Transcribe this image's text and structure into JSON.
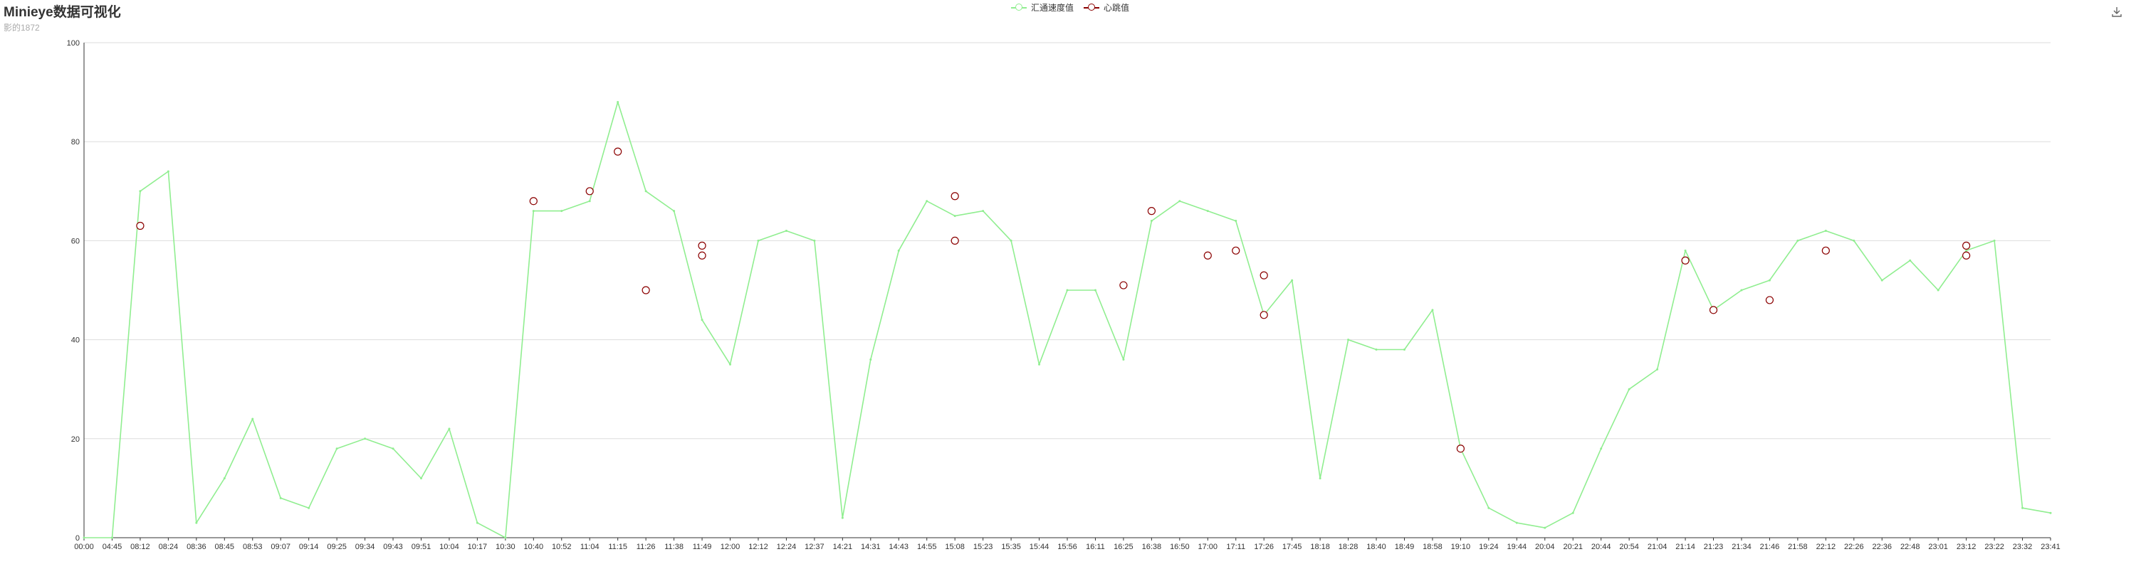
{
  "title": "Minieye数据可视化",
  "subtitle": "影的1872",
  "toolbox": {
    "download_icon": "download-icon"
  },
  "colors": {
    "speed": "#90ee90",
    "heartbeat": "#8b0000",
    "grid": "#dddddd",
    "axis": "#333333"
  },
  "chart_data": {
    "type": "line",
    "title": "Minieye数据可视化",
    "subtitle": "影的1872",
    "legend_position": "top-center",
    "grid": true,
    "ylim": [
      0,
      100
    ],
    "yticks": [
      0,
      20,
      40,
      60,
      80,
      100
    ],
    "categories": [
      "00:00",
      "04:45",
      "08:12",
      "08:24",
      "08:36",
      "08:45",
      "08:53",
      "09:07",
      "09:14",
      "09:25",
      "09:34",
      "09:43",
      "09:51",
      "10:04",
      "10:17",
      "10:30",
      "10:40",
      "10:52",
      "11:04",
      "11:15",
      "11:26",
      "11:38",
      "11:49",
      "12:00",
      "12:12",
      "12:24",
      "12:37",
      "14:21",
      "14:31",
      "14:43",
      "14:55",
      "15:08",
      "15:23",
      "15:35",
      "15:44",
      "15:56",
      "16:11",
      "16:25",
      "16:38",
      "16:50",
      "17:00",
      "17:11",
      "17:26",
      "17:45",
      "18:18",
      "18:28",
      "18:40",
      "18:49",
      "18:58",
      "19:10",
      "19:24",
      "19:44",
      "20:04",
      "20:21",
      "20:44",
      "20:54",
      "21:04",
      "21:14",
      "21:23",
      "21:34",
      "21:46",
      "21:58",
      "22:12",
      "22:26",
      "22:36",
      "22:48",
      "23:01",
      "23:12",
      "23:22",
      "23:32",
      "23:41"
    ],
    "series": [
      {
        "name": "汇通速度值",
        "values": [
          0,
          0,
          70,
          74,
          3,
          12,
          24,
          8,
          6,
          18,
          20,
          18,
          12,
          22,
          3,
          0,
          66,
          66,
          68,
          88,
          70,
          66,
          44,
          35,
          60,
          62,
          60,
          4,
          36,
          58,
          68,
          65,
          66,
          60,
          35,
          50,
          50,
          36,
          64,
          68,
          66,
          64,
          45,
          52,
          12,
          40,
          38,
          38,
          46,
          18,
          6,
          3,
          2,
          5,
          18,
          30,
          34,
          58,
          46,
          50,
          52,
          60,
          62,
          60,
          52,
          56,
          50,
          58,
          60,
          6,
          5
        ]
      },
      {
        "name": "心跳值",
        "points": [
          [
            "08:12",
            63
          ],
          [
            "10:40",
            68
          ],
          [
            "11:04",
            70
          ],
          [
            "11:15",
            78
          ],
          [
            "11:26",
            50
          ],
          [
            "11:49",
            57
          ],
          [
            "11:49",
            59
          ],
          [
            "15:08",
            69
          ],
          [
            "15:08",
            60
          ],
          [
            "16:25",
            51
          ],
          [
            "16:38",
            66
          ],
          [
            "17:00",
            57
          ],
          [
            "17:11",
            58
          ],
          [
            "17:26",
            53
          ],
          [
            "17:26",
            45
          ],
          [
            "19:10",
            18
          ],
          [
            "21:14",
            56
          ],
          [
            "21:23",
            46
          ],
          [
            "21:46",
            48
          ],
          [
            "22:12",
            58
          ],
          [
            "23:12",
            59
          ],
          [
            "23:12",
            57
          ]
        ]
      }
    ]
  }
}
